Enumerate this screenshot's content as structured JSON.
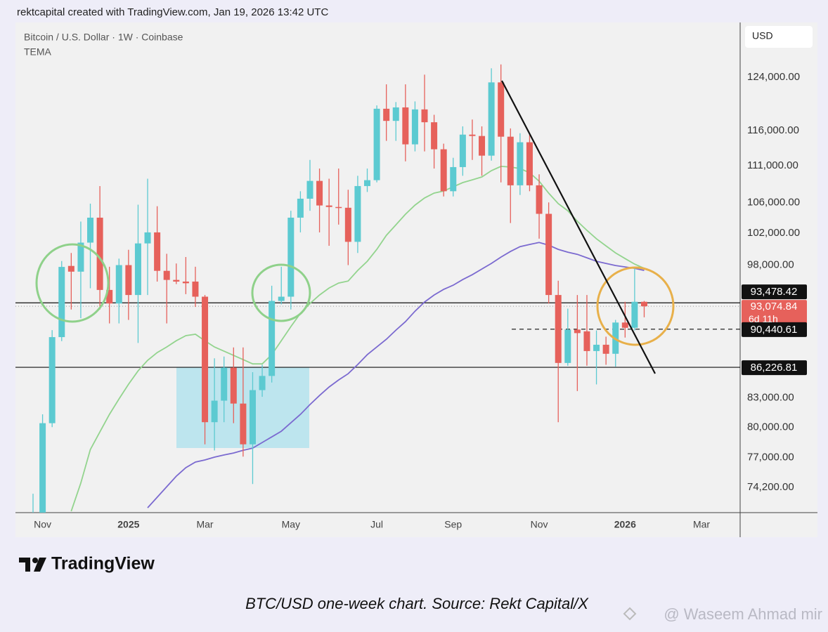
{
  "header": "rektcapital created with TradingView.com, Jan 19, 2026 13:42 UTC",
  "chart_data": {
    "type": "candlestick",
    "title": "Bitcoin / U.S. Dollar · 1W · Coinbase",
    "indicator": "TEMA",
    "currency": "USD",
    "categories": [
      null,
      "Nov",
      null,
      null,
      null,
      null,
      null,
      null,
      null,
      null,
      "2025",
      null,
      null,
      null,
      null,
      null,
      null,
      null,
      "Mar",
      null,
      null,
      null,
      null,
      null,
      null,
      null,
      null,
      "May",
      null,
      null,
      null,
      null,
      null,
      null,
      null,
      null,
      "Jul",
      null,
      null,
      null,
      null,
      null,
      null,
      null,
      "Sep",
      null,
      null,
      null,
      null,
      null,
      null,
      null,
      null,
      "Nov",
      null,
      null,
      null,
      null,
      null,
      null,
      null,
      null,
      "2026",
      null,
      null,
      null,
      null,
      null,
      null,
      null,
      "Mar"
    ],
    "open": [
      68000,
      69400,
      80400,
      89550,
      97900,
      97200,
      100800,
      104000,
      95000,
      93400,
      98000,
      94400,
      100700,
      102100,
      97300,
      96200,
      96000,
      96000,
      94200,
      80500,
      82700,
      86200,
      82400,
      78300,
      83800,
      85300,
      93700,
      94200,
      104000,
      106500,
      108900,
      105600,
      105400,
      105300,
      100900,
      108200,
      109000,
      119200,
      117400,
      119400,
      114000,
      119100,
      117200,
      113300,
      107500,
      110800,
      115400,
      115200,
      112400,
      123200,
      115100,
      108300,
      114300,
      108300,
      104500,
      94400,
      86700,
      90400,
      90200,
      88000,
      88700,
      87700,
      91200,
      90600,
      93600,
      null,
      null,
      null,
      null,
      null,
      null
    ],
    "high": [
      73600,
      81300,
      90340,
      98500,
      99500,
      103500,
      105840,
      108200,
      97800,
      98800,
      99900,
      105700,
      109200,
      105500,
      99400,
      98200,
      99000,
      97800,
      94400,
      87200,
      87400,
      88400,
      88400,
      85700,
      86500,
      95500,
      97800,
      104900,
      107500,
      111800,
      110600,
      109200,
      110600,
      107700,
      109600,
      110600,
      119700,
      122900,
      120200,
      122900,
      120300,
      124400,
      118300,
      114100,
      112100,
      116600,
      117600,
      116600,
      125400,
      126000,
      116300,
      115600,
      115400,
      109800,
      106000,
      96100,
      92800,
      94400,
      94400,
      90300,
      89600,
      91500,
      93600,
      97800,
      93700,
      null,
      null,
      null,
      null,
      null,
      null
    ],
    "low": [
      66800,
      66800,
      80000,
      89100,
      92700,
      91700,
      95200,
      92700,
      91100,
      91100,
      91500,
      88900,
      94400,
      96000,
      91100,
      95700,
      94500,
      93000,
      78300,
      77700,
      80500,
      80400,
      77100,
      74500,
      83100,
      84600,
      93300,
      92700,
      102100,
      104900,
      102100,
      100400,
      103100,
      98000,
      99500,
      107400,
      108700,
      114500,
      114500,
      111600,
      113000,
      113000,
      110600,
      106800,
      106800,
      109600,
      111800,
      109600,
      111700,
      108700,
      103300,
      107000,
      107500,
      101300,
      93400,
      80500,
      86400,
      83700,
      86400,
      84400,
      86500,
      86300,
      89500,
      90300,
      91800,
      null,
      null,
      null,
      null,
      null,
      null
    ],
    "close": [
      69400,
      80400,
      89550,
      97780,
      97200,
      100800,
      104000,
      95000,
      93400,
      98000,
      94400,
      100700,
      102100,
      97300,
      96200,
      96000,
      95800,
      94200,
      80500,
      82700,
      86200,
      82400,
      78300,
      83800,
      85300,
      93700,
      94200,
      104000,
      106500,
      108900,
      105600,
      105400,
      105300,
      100900,
      108200,
      109000,
      119200,
      117400,
      119400,
      114000,
      119100,
      117200,
      113300,
      107500,
      110800,
      115400,
      115200,
      112400,
      123200,
      115100,
      108300,
      114300,
      108300,
      104500,
      94400,
      86700,
      90400,
      90000,
      88000,
      88700,
      87700,
      91200,
      90600,
      93600,
      93074.84,
      null,
      null,
      null,
      null,
      null,
      null
    ],
    "up_color": "#5ccad1",
    "down_color": "#e6615b",
    "overlays": [
      {
        "color": "#93d48e",
        "values": [
          null,
          null,
          null,
          null,
          72000,
          74580,
          77790,
          79520,
          81290,
          82880,
          84420,
          85840,
          86980,
          87830,
          88450,
          89150,
          89710,
          89870,
          89150,
          88450,
          87990,
          87520,
          87060,
          86600,
          86600,
          87600,
          89150,
          90740,
          92260,
          93400,
          94400,
          95230,
          95820,
          96070,
          97350,
          98470,
          99950,
          101730,
          103080,
          104450,
          105650,
          106600,
          107250,
          107530,
          108100,
          108670,
          109050,
          109440,
          110310,
          110900,
          110800,
          110600,
          110020,
          108860,
          107250,
          105840,
          104910,
          103530,
          102360,
          101280,
          100390,
          99510,
          98810,
          98120,
          97610,
          null,
          null,
          null,
          null,
          null,
          null
        ]
      },
      {
        "color": "#7b6ad0",
        "values": [
          null,
          null,
          null,
          null,
          null,
          null,
          null,
          null,
          null,
          null,
          null,
          null,
          72320,
          73280,
          74250,
          75240,
          76040,
          76580,
          76780,
          77050,
          77260,
          77450,
          77720,
          77930,
          78480,
          79030,
          79590,
          80440,
          81290,
          82300,
          83240,
          84130,
          84870,
          85540,
          86530,
          87600,
          88450,
          89310,
          90340,
          91300,
          92500,
          93570,
          94400,
          95070,
          95570,
          96240,
          96830,
          97520,
          98210,
          98990,
          99690,
          100300,
          100570,
          100820,
          100480,
          99950,
          99600,
          99330,
          98900,
          98470,
          98210,
          97950,
          97780,
          97610,
          97350,
          null,
          null,
          null,
          null,
          null,
          null
        ]
      }
    ],
    "log_scale": true,
    "grid": false,
    "ylim": [
      71880,
      132800
    ],
    "yticks": [
      {
        "value": 124000,
        "label": "124,000.00"
      },
      {
        "value": 116000,
        "label": "116,000.00"
      },
      {
        "value": 111000,
        "label": "111,000.00"
      },
      {
        "value": 106000,
        "label": "106,000.00"
      },
      {
        "value": 102000,
        "label": "102,000.00"
      },
      {
        "value": 98000,
        "label": "98,000.00"
      },
      {
        "value": 83000,
        "label": "83,000.00"
      },
      {
        "value": 80000,
        "label": "80,000.00"
      },
      {
        "value": 77000,
        "label": "77,000.00"
      },
      {
        "value": 74200,
        "label": "74,200.00"
      }
    ],
    "levels": [
      {
        "value": 93478.42,
        "label": "93,478.42",
        "style": "solid"
      },
      {
        "value": 90440.61,
        "label": "90,440.61",
        "style": "dashed"
      },
      {
        "value": 86226.81,
        "label": "86,226.81",
        "style": "solid"
      }
    ],
    "last_price": {
      "value": 93074.84,
      "label": "93,074.84"
    },
    "countdown": "6d 11h"
  },
  "brand": "TradingView",
  "caption": "BTC/USD one-week chart. Source: Rekt Capital/X",
  "watermark": "@ Waseem Ahmad mir"
}
